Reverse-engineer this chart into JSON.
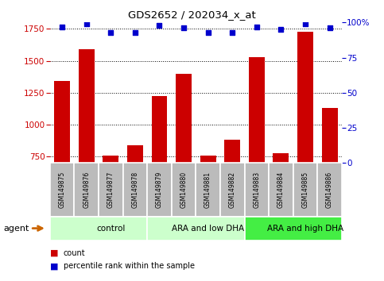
{
  "title": "GDS2652 / 202034_x_at",
  "samples": [
    "GSM149875",
    "GSM149876",
    "GSM149877",
    "GSM149878",
    "GSM149879",
    "GSM149880",
    "GSM149881",
    "GSM149882",
    "GSM149883",
    "GSM149884",
    "GSM149885",
    "GSM149886"
  ],
  "counts": [
    1340,
    1590,
    755,
    840,
    1225,
    1395,
    760,
    880,
    1530,
    775,
    1730,
    1130
  ],
  "percentile": [
    97,
    99,
    93,
    93,
    98,
    96,
    93,
    93,
    97,
    95,
    99,
    96
  ],
  "groups": [
    {
      "label": "control",
      "start": 0,
      "end": 4,
      "color": "#ccffcc"
    },
    {
      "label": "ARA and low DHA",
      "start": 4,
      "end": 8,
      "color": "#ccffcc"
    },
    {
      "label": "ARA and high DHA",
      "start": 8,
      "end": 12,
      "color": "#44ee44"
    }
  ],
  "group_colors": [
    "#ccffcc",
    "#ccffcc",
    "#44ee44"
  ],
  "ylim_left": [
    700,
    1800
  ],
  "ylim_right": [
    0,
    100
  ],
  "yticks_left": [
    750,
    1000,
    1250,
    1500,
    1750
  ],
  "yticks_right": [
    0,
    25,
    50,
    75,
    100
  ],
  "bar_color": "#cc0000",
  "dot_color": "#0000cc",
  "left_tick_color": "#cc0000",
  "right_tick_color": "#0000cc",
  "label_bg_color": "#bbbbbb",
  "agent_arrow_color": "#cc6600"
}
